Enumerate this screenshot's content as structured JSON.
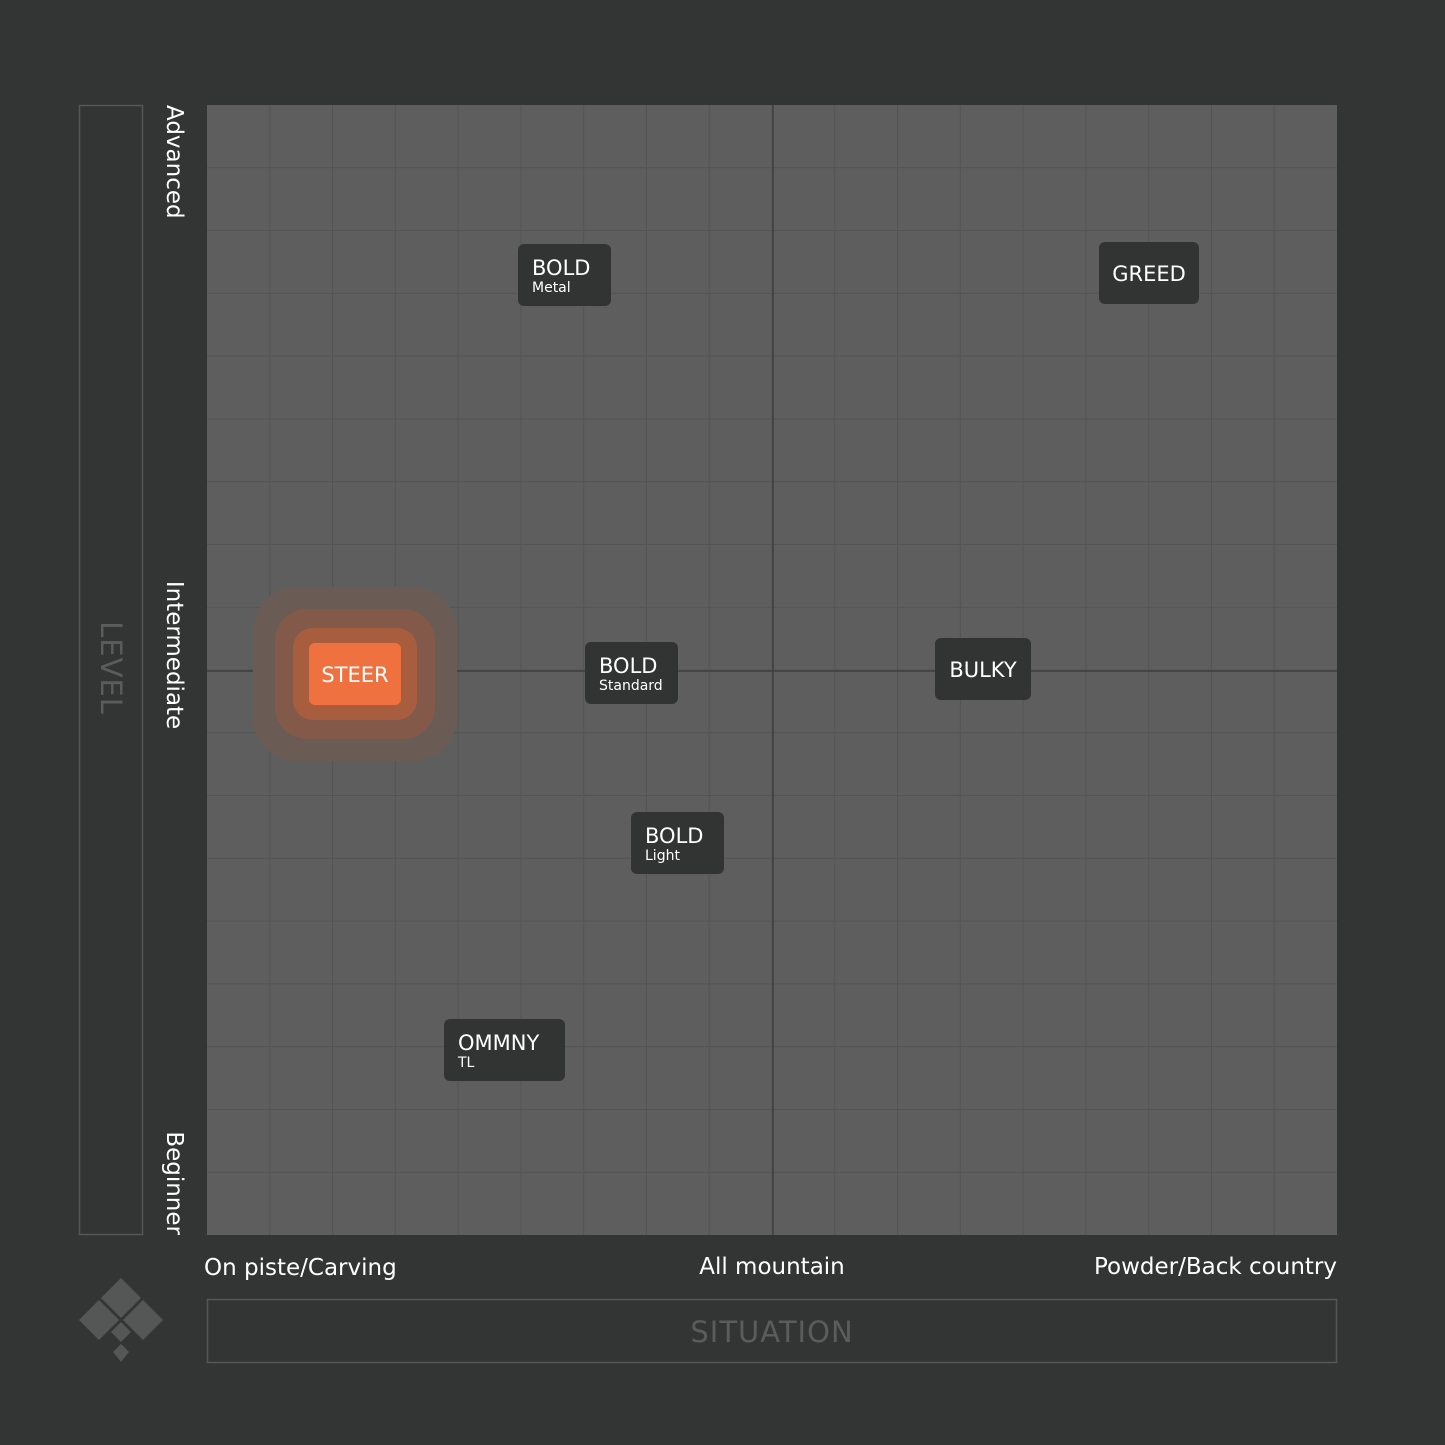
{
  "axes": {
    "y_title": "LEVEL",
    "y_labels": [
      "Advanced",
      "Intermediate",
      "Beginner"
    ],
    "x_title": "SITUATION",
    "x_labels": [
      "On piste/Carving",
      "All mountain",
      "Powder/Back country"
    ]
  },
  "nodes": [
    {
      "title": "BOLD",
      "subtitle": "Metal"
    },
    {
      "title": "GREED"
    },
    {
      "title": "STEER",
      "highlight": true
    },
    {
      "title": "BOLD",
      "subtitle": "Standard"
    },
    {
      "title": "BULKY"
    },
    {
      "title": "BOLD",
      "subtitle": "Light"
    },
    {
      "title": "OMMNY",
      "subtitle": "TL"
    }
  ]
}
